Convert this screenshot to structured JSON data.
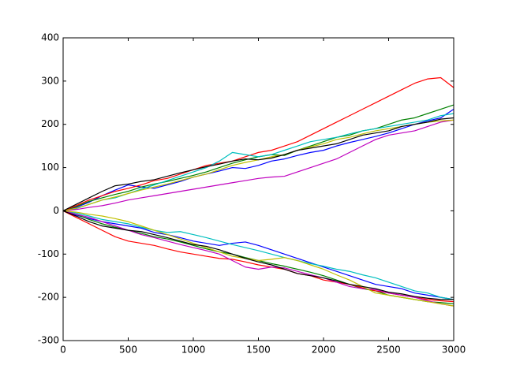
{
  "chart_data": {
    "type": "line",
    "x": [
      0,
      100,
      200,
      300,
      400,
      500,
      600,
      700,
      800,
      900,
      1000,
      1100,
      1200,
      1300,
      1400,
      1500,
      1600,
      1700,
      1800,
      1900,
      2000,
      2100,
      2200,
      2300,
      2400,
      2500,
      2600,
      2700,
      2800,
      2900,
      3000
    ],
    "xlim": [
      0,
      3000
    ],
    "xticks": [
      0,
      500,
      1000,
      1500,
      2000,
      2500,
      3000
    ],
    "ylim": [
      -300,
      400
    ],
    "yticks": [
      -300,
      -200,
      -100,
      0,
      100,
      200,
      300,
      400
    ],
    "grid": false,
    "series": [
      {
        "color": "#0000ff",
        "values": [
          0,
          8,
          20,
          35,
          48,
          60,
          55,
          52,
          60,
          68,
          78,
          85,
          92,
          100,
          98,
          105,
          115,
          120,
          128,
          135,
          140,
          150,
          158,
          165,
          172,
          180,
          190,
          200,
          208,
          215,
          235
        ]
      },
      {
        "color": "#008000",
        "values": [
          0,
          10,
          22,
          30,
          38,
          45,
          55,
          62,
          68,
          75,
          82,
          90,
          100,
          110,
          118,
          125,
          130,
          128,
          140,
          150,
          160,
          170,
          175,
          185,
          190,
          200,
          210,
          215,
          225,
          235,
          245
        ]
      },
      {
        "color": "#ff0000",
        "values": [
          0,
          12,
          25,
          35,
          45,
          52,
          60,
          70,
          75,
          85,
          95,
          105,
          110,
          115,
          125,
          135,
          140,
          150,
          160,
          175,
          190,
          205,
          220,
          235,
          250,
          265,
          280,
          295,
          305,
          308,
          285
        ]
      },
      {
        "color": "#00bfbf",
        "values": [
          0,
          5,
          15,
          25,
          30,
          40,
          50,
          60,
          70,
          80,
          90,
          100,
          115,
          135,
          130,
          125,
          130,
          140,
          150,
          160,
          165,
          170,
          178,
          185,
          190,
          195,
          200,
          205,
          210,
          220,
          225
        ]
      },
      {
        "color": "#bf00bf",
        "values": [
          0,
          3,
          8,
          12,
          18,
          25,
          30,
          35,
          40,
          45,
          50,
          55,
          60,
          65,
          70,
          75,
          78,
          80,
          90,
          100,
          110,
          120,
          135,
          150,
          165,
          175,
          180,
          185,
          195,
          205,
          210
        ]
      },
      {
        "color": "#bfbf00",
        "values": [
          0,
          6,
          15,
          25,
          32,
          40,
          48,
          55,
          62,
          70,
          78,
          85,
          95,
          105,
          112,
          118,
          125,
          130,
          140,
          148,
          155,
          165,
          170,
          178,
          185,
          190,
          195,
          200,
          205,
          208,
          210
        ]
      },
      {
        "color": "#000000",
        "values": [
          0,
          15,
          30,
          45,
          58,
          62,
          68,
          72,
          80,
          88,
          95,
          102,
          108,
          115,
          120,
          118,
          122,
          130,
          140,
          145,
          150,
          155,
          165,
          175,
          180,
          185,
          195,
          200,
          205,
          212,
          215
        ]
      },
      {
        "color": "#0000ff",
        "values": [
          0,
          -10,
          -18,
          -25,
          -30,
          -35,
          -40,
          -50,
          -55,
          -62,
          -70,
          -75,
          -80,
          -75,
          -72,
          -80,
          -90,
          -100,
          -110,
          -120,
          -130,
          -140,
          -150,
          -160,
          -170,
          -175,
          -180,
          -190,
          -195,
          -200,
          -205
        ]
      },
      {
        "color": "#008000",
        "values": [
          0,
          -8,
          -20,
          -30,
          -38,
          -45,
          -52,
          -60,
          -65,
          -72,
          -80,
          -88,
          -95,
          -100,
          -108,
          -115,
          -122,
          -128,
          -135,
          -142,
          -150,
          -160,
          -170,
          -180,
          -185,
          -195,
          -200,
          -205,
          -210,
          -212,
          -215
        ]
      },
      {
        "color": "#ff0000",
        "values": [
          0,
          -15,
          -30,
          -45,
          -60,
          -70,
          -75,
          -80,
          -88,
          -95,
          -100,
          -105,
          -110,
          -112,
          -118,
          -125,
          -130,
          -135,
          -145,
          -150,
          -160,
          -165,
          -170,
          -178,
          -185,
          -190,
          -195,
          -200,
          -205,
          -208,
          -210
        ]
      },
      {
        "color": "#00bfbf",
        "values": [
          0,
          -5,
          -12,
          -20,
          -25,
          -30,
          -38,
          -45,
          -50,
          -48,
          -55,
          -62,
          -70,
          -78,
          -85,
          -92,
          -100,
          -108,
          -115,
          -122,
          -128,
          -135,
          -140,
          -148,
          -155,
          -165,
          -175,
          -185,
          -190,
          -200,
          -205
        ]
      },
      {
        "color": "#bf00bf",
        "values": [
          0,
          -8,
          -15,
          -25,
          -35,
          -45,
          -55,
          -62,
          -70,
          -78,
          -85,
          -92,
          -100,
          -115,
          -130,
          -135,
          -130,
          -132,
          -140,
          -148,
          -155,
          -165,
          -175,
          -180,
          -182,
          -190,
          -195,
          -200,
          -208,
          -215,
          -220
        ]
      },
      {
        "color": "#bfbf00",
        "values": [
          0,
          -3,
          -8,
          -12,
          -18,
          -25,
          -35,
          -45,
          -55,
          -65,
          -75,
          -85,
          -95,
          -105,
          -110,
          -115,
          -112,
          -108,
          -115,
          -125,
          -135,
          -148,
          -160,
          -175,
          -190,
          -195,
          -200,
          -205,
          -210,
          -215,
          -220
        ]
      },
      {
        "color": "#000000",
        "values": [
          0,
          -12,
          -25,
          -35,
          -40,
          -45,
          -48,
          -55,
          -62,
          -70,
          -78,
          -82,
          -90,
          -100,
          -110,
          -118,
          -125,
          -135,
          -145,
          -150,
          -155,
          -162,
          -170,
          -175,
          -180,
          -188,
          -192,
          -198,
          -202,
          -205,
          -205
        ]
      }
    ]
  }
}
